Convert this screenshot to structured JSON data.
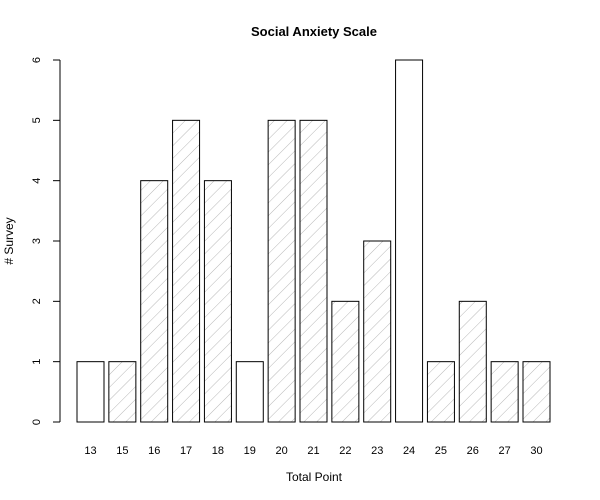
{
  "chart_data": {
    "type": "bar",
    "title": "Social Anxiety Scale",
    "xlabel": "Total Point",
    "ylabel": "# Survey",
    "categories": [
      "13",
      "15",
      "16",
      "17",
      "18",
      "19",
      "20",
      "21",
      "22",
      "23",
      "24",
      "25",
      "26",
      "27",
      "30"
    ],
    "values": [
      1,
      1,
      4,
      5,
      4,
      1,
      5,
      5,
      2,
      3,
      6,
      1,
      2,
      1,
      1
    ],
    "hatched": [
      false,
      true,
      true,
      true,
      true,
      false,
      true,
      true,
      true,
      true,
      false,
      true,
      true,
      true,
      true
    ],
    "ylim": [
      0,
      6
    ],
    "yticks": [
      "0",
      "1",
      "2",
      "3",
      "4",
      "5",
      "6"
    ],
    "grid": false,
    "colors": {
      "bar_fill": "#ffffff",
      "bar_stroke": "#000000",
      "hatch": "#b0b0b0",
      "axis": "#000000"
    }
  }
}
